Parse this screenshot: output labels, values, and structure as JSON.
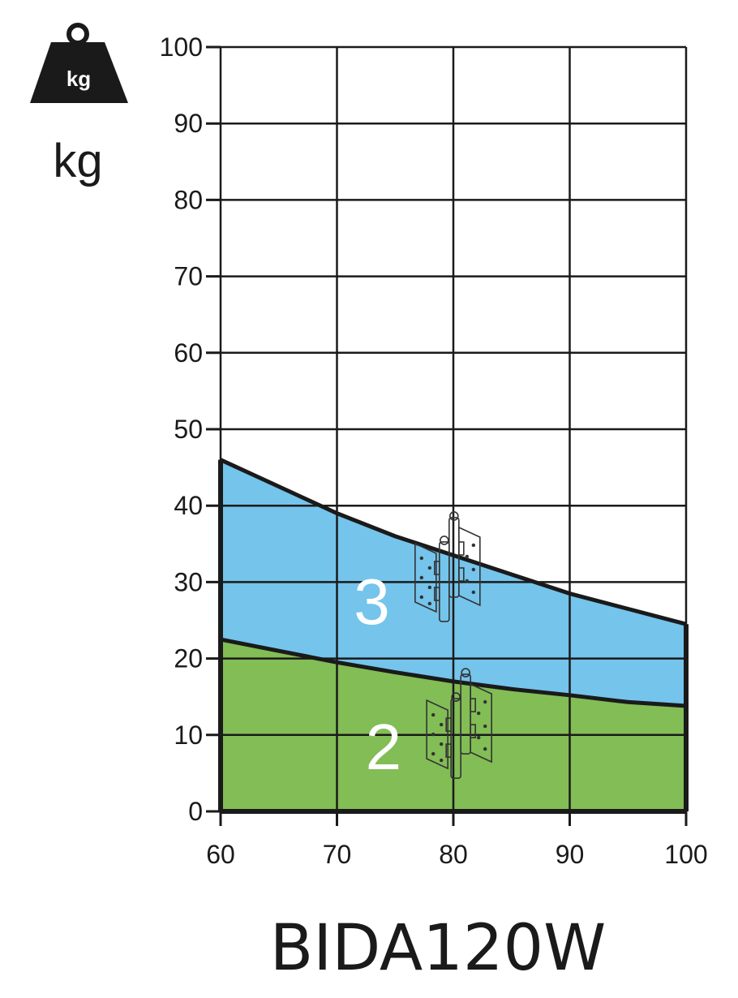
{
  "title": "BIDA120W",
  "unit_label": "kg",
  "weight_icon": {
    "name": "weight-icon",
    "text": "kg"
  },
  "colors": {
    "hinges_3": "#74c4eb",
    "hinges_2": "#82bd55",
    "grid": "#1a1a1a",
    "label": "#ffffff"
  },
  "chart_data": {
    "type": "area",
    "title": "BIDA120W",
    "xlabel": "",
    "ylabel": "kg",
    "xlim": [
      60,
      100
    ],
    "ylim": [
      0,
      100
    ],
    "x_ticks": [
      60,
      70,
      80,
      90,
      100
    ],
    "y_ticks": [
      0,
      10,
      20,
      30,
      40,
      50,
      60,
      70,
      80,
      90,
      100
    ],
    "grid": true,
    "series": [
      {
        "label": "3",
        "icon": "hinge-icon",
        "color": "#74c4eb",
        "x": [
          60,
          65,
          70,
          75,
          80,
          85,
          90,
          95,
          100
        ],
        "y": [
          46,
          42.5,
          39,
          36,
          33.5,
          31,
          28.5,
          26.5,
          24.5
        ]
      },
      {
        "label": "2",
        "icon": "hinge-icon",
        "color": "#82bd55",
        "x": [
          60,
          65,
          70,
          75,
          80,
          85,
          90,
          95,
          100
        ],
        "y": [
          22.5,
          21,
          19.5,
          18.2,
          17,
          16,
          15.2,
          14.3,
          13.8
        ]
      }
    ]
  }
}
